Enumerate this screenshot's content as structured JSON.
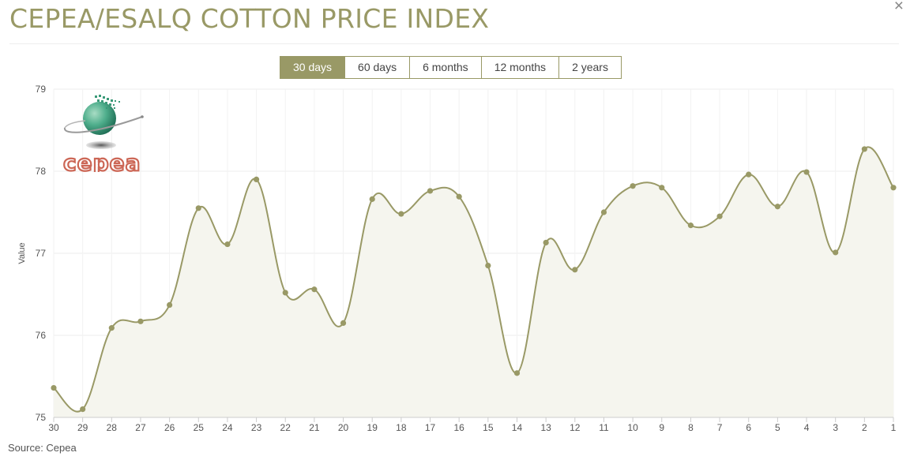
{
  "header": {
    "title": "CEPEA/ESALQ COTTON PRICE INDEX",
    "close_label": "×"
  },
  "range_selector": {
    "options": [
      "30 days",
      "60 days",
      "6 months",
      "12 months",
      "2 years"
    ],
    "active": "30 days"
  },
  "logo": {
    "text": "cepea"
  },
  "footer": {
    "source": "Source: Cepea"
  },
  "colors": {
    "accent": "#999966",
    "area_fill": "#f5f5ee",
    "grid": "#eeeeee",
    "logo_text": "#cc6655"
  },
  "chart_data": {
    "type": "area",
    "title": "",
    "ylabel": "Value",
    "xlabel": "",
    "ylim": [
      75,
      79
    ],
    "yticks": [
      75,
      76,
      77,
      78,
      79
    ],
    "categories": [
      "30",
      "29",
      "28",
      "27",
      "26",
      "25",
      "24",
      "23",
      "22",
      "21",
      "20",
      "19",
      "18",
      "17",
      "16",
      "15",
      "14",
      "13",
      "12",
      "11",
      "10",
      "9",
      "8",
      "7",
      "6",
      "5",
      "4",
      "3",
      "2",
      "1"
    ],
    "series": [
      {
        "values": [
          75.36,
          75.1,
          76.09,
          76.17,
          76.37,
          77.55,
          77.11,
          77.9,
          76.52,
          76.56,
          76.15,
          77.66,
          77.48,
          77.76,
          77.69,
          76.85,
          75.54,
          77.13,
          76.8,
          77.5,
          77.82,
          77.8,
          77.34,
          77.45,
          77.96,
          77.57,
          77.99,
          77.01,
          78.27,
          77.8
        ]
      }
    ],
    "grid": true,
    "smooth": true
  }
}
